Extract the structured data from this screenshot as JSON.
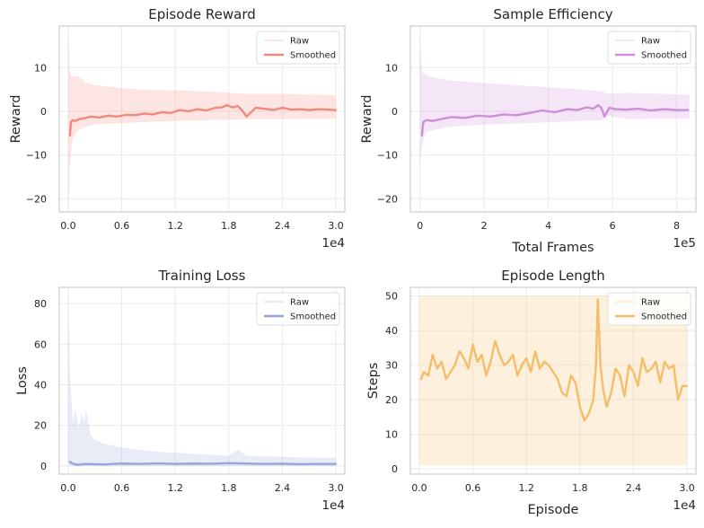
{
  "chart_data": [
    {
      "type": "line",
      "title": "Episode Reward",
      "xlabel": "",
      "ylabel": "Reward",
      "xlim": [
        -0.1,
        3.1
      ],
      "ylim": [
        -23,
        19.5
      ],
      "xticks": [
        0.0,
        0.6,
        1.2,
        1.8,
        2.4,
        3.0
      ],
      "xtick_labels": [
        "0.0",
        "0.6",
        "1.2",
        "1.8",
        "2.4",
        "3.0"
      ],
      "yticks": [
        -20,
        -10,
        0,
        10
      ],
      "ytick_labels": [
        "−20",
        "−10",
        "0",
        "10"
      ],
      "x_offset_label": "1e4",
      "color": "#f08a7e",
      "legend": {
        "position": "top-right",
        "entries": [
          "Raw",
          "Smoothed"
        ]
      },
      "series": [
        {
          "name": "Raw",
          "band_x": [
            0.0,
            0.02,
            0.05,
            0.1,
            0.15,
            0.2,
            0.3,
            0.5,
            0.8,
            1.2,
            1.6,
            2.0,
            2.4,
            2.8,
            3.0
          ],
          "band_low": [
            -23,
            -12,
            -6,
            -4.5,
            -4,
            -3.5,
            -3,
            -2.8,
            -2.5,
            -2.2,
            -2,
            -1.8,
            -1.8,
            -1.7,
            -1.7
          ],
          "band_high": [
            18,
            8.5,
            8,
            8,
            7.5,
            6.5,
            6,
            5.5,
            5,
            4.8,
            4.5,
            4,
            4,
            3.8,
            3.7
          ]
        },
        {
          "name": "Smoothed",
          "x": [
            0.02,
            0.03,
            0.05,
            0.08,
            0.12,
            0.18,
            0.25,
            0.35,
            0.45,
            0.55,
            0.65,
            0.75,
            0.85,
            0.95,
            1.05,
            1.15,
            1.25,
            1.35,
            1.45,
            1.55,
            1.65,
            1.72,
            1.78,
            1.84,
            1.9,
            1.95,
            2.0,
            2.1,
            2.2,
            2.3,
            2.4,
            2.5,
            2.6,
            2.7,
            2.8,
            2.9,
            3.0
          ],
          "y": [
            -5.5,
            -2.5,
            -2.0,
            -2.2,
            -1.8,
            -1.6,
            -1.2,
            -1.4,
            -1.0,
            -1.2,
            -0.8,
            -0.9,
            -0.5,
            -0.7,
            -0.2,
            -0.4,
            0.3,
            0.0,
            0.5,
            0.2,
            0.8,
            0.9,
            1.4,
            0.9,
            1.2,
            0.2,
            -1.2,
            0.8,
            0.6,
            0.3,
            0.8,
            0.4,
            0.5,
            0.3,
            0.5,
            0.4,
            0.3
          ]
        }
      ]
    },
    {
      "type": "line",
      "title": "Sample Efficiency",
      "xlabel": "Total Frames",
      "ylabel": "Reward",
      "xlim": [
        -0.3,
        8.6
      ],
      "ylim": [
        -23,
        19.5
      ],
      "xticks": [
        0,
        2,
        4,
        6,
        8
      ],
      "xtick_labels": [
        "0",
        "2",
        "4",
        "6",
        "8"
      ],
      "yticks": [
        -20,
        -10,
        0,
        10
      ],
      "ytick_labels": [
        "−20",
        "−10",
        "0",
        "10"
      ],
      "x_offset_label": "1e5",
      "color": "#cc8fd8",
      "legend": {
        "position": "top-right",
        "entries": [
          "Raw",
          "Smoothed"
        ]
      },
      "series": [
        {
          "name": "Raw",
          "band_x": [
            0.0,
            0.06,
            0.15,
            0.3,
            0.6,
            1.0,
            2.0,
            3.0,
            4.0,
            5.0,
            5.7,
            5.8,
            6.5,
            7.5,
            8.4
          ],
          "band_low": [
            -12,
            -8,
            -5,
            -4.5,
            -4,
            -3.5,
            -3,
            -2.8,
            -2.5,
            -2.2,
            -2.0,
            -1.0,
            -1.8,
            -1.7,
            -1.7
          ],
          "band_high": [
            18,
            9,
            8.5,
            8,
            7.5,
            7,
            6.5,
            6,
            5.5,
            5,
            4.6,
            4.1,
            4.2,
            4.0,
            3.8
          ]
        },
        {
          "name": "Smoothed",
          "x": [
            0.06,
            0.1,
            0.2,
            0.4,
            0.7,
            1.0,
            1.4,
            1.8,
            2.2,
            2.6,
            3.0,
            3.4,
            3.8,
            4.2,
            4.6,
            4.9,
            5.2,
            5.4,
            5.55,
            5.65,
            5.75,
            5.9,
            6.1,
            6.4,
            6.8,
            7.2,
            7.6,
            8.0,
            8.35
          ],
          "y": [
            -5.5,
            -2.5,
            -2.0,
            -2.2,
            -1.7,
            -1.3,
            -1.5,
            -1.0,
            -1.2,
            -0.7,
            -0.9,
            -0.4,
            0.2,
            -0.2,
            0.5,
            0.3,
            0.9,
            0.6,
            1.4,
            0.8,
            -1.2,
            0.8,
            0.5,
            0.4,
            0.6,
            0.2,
            0.5,
            0.3,
            0.3
          ]
        }
      ]
    },
    {
      "type": "line",
      "title": "Training Loss",
      "xlabel": "",
      "ylabel": "Loss",
      "xlim": [
        -0.1,
        3.1
      ],
      "ylim": [
        -4,
        88
      ],
      "xticks": [
        0.0,
        0.6,
        1.2,
        1.8,
        2.4,
        3.0
      ],
      "xtick_labels": [
        "0.0",
        "0.6",
        "1.2",
        "1.8",
        "2.4",
        "3.0"
      ],
      "yticks": [
        0,
        20,
        40,
        60,
        80
      ],
      "ytick_labels": [
        "0",
        "20",
        "40",
        "60",
        "80"
      ],
      "x_offset_label": "1e4",
      "color": "#9aa4d8",
      "legend": {
        "position": "top-right",
        "entries": [
          "Raw",
          "Smoothed"
        ]
      },
      "series": [
        {
          "name": "Raw",
          "band_x": [
            0.0,
            0.02,
            0.05,
            0.08,
            0.12,
            0.15,
            0.18,
            0.2,
            0.25,
            0.3,
            0.4,
            0.6,
            0.8,
            1.0,
            1.4,
            1.8,
            1.9,
            2.0,
            2.4,
            2.8,
            3.0
          ],
          "band_low": [
            0,
            0,
            0,
            0,
            0,
            0,
            0,
            0,
            0,
            0,
            0,
            0,
            0,
            0,
            0,
            0,
            0,
            0,
            0,
            0,
            0
          ],
          "band_high": [
            85,
            45,
            22,
            28,
            18,
            26,
            22,
            28,
            15,
            13,
            11,
            9,
            8,
            7,
            6,
            5,
            8,
            5,
            4.5,
            4,
            4
          ]
        },
        {
          "name": "Smoothed",
          "x": [
            0.02,
            0.05,
            0.1,
            0.2,
            0.4,
            0.6,
            0.8,
            1.0,
            1.2,
            1.4,
            1.6,
            1.8,
            2.0,
            2.2,
            2.4,
            2.6,
            2.8,
            3.0
          ],
          "y": [
            2.0,
            1.2,
            0.6,
            1.0,
            0.8,
            1.2,
            1.0,
            1.3,
            1.0,
            1.2,
            1.1,
            1.4,
            1.2,
            1.0,
            1.1,
            0.9,
            1.0,
            1.0
          ]
        }
      ]
    },
    {
      "type": "line",
      "title": "Episode Length",
      "xlabel": "Episode",
      "ylabel": "Steps",
      "xlim": [
        -0.1,
        3.1
      ],
      "ylim": [
        -1.5,
        52.5
      ],
      "xticks": [
        0.0,
        0.6,
        1.2,
        1.8,
        2.4,
        3.0
      ],
      "xtick_labels": [
        "0.0",
        "0.6",
        "1.2",
        "1.8",
        "2.4",
        "3.0"
      ],
      "yticks": [
        0,
        10,
        20,
        30,
        40,
        50
      ],
      "ytick_labels": [
        "0",
        "10",
        "20",
        "30",
        "40",
        "50"
      ],
      "x_offset_label": "1e4",
      "color": "#f5bd6b",
      "legend": {
        "position": "top-right",
        "entries": [
          "Raw",
          "Smoothed"
        ]
      },
      "series": [
        {
          "name": "Raw",
          "band_x": [
            0.0,
            3.0
          ],
          "band_low": [
            1,
            1
          ],
          "band_high": [
            50,
            50
          ]
        },
        {
          "name": "Smoothed",
          "x": [
            0.02,
            0.05,
            0.1,
            0.15,
            0.2,
            0.25,
            0.3,
            0.35,
            0.4,
            0.45,
            0.5,
            0.55,
            0.6,
            0.65,
            0.7,
            0.75,
            0.8,
            0.85,
            0.9,
            0.95,
            1.0,
            1.05,
            1.1,
            1.15,
            1.2,
            1.25,
            1.3,
            1.35,
            1.4,
            1.45,
            1.5,
            1.55,
            1.6,
            1.65,
            1.7,
            1.75,
            1.8,
            1.85,
            1.9,
            1.95,
            1.98,
            2.0,
            2.03,
            2.06,
            2.1,
            2.15,
            2.2,
            2.25,
            2.3,
            2.35,
            2.4,
            2.45,
            2.5,
            2.55,
            2.6,
            2.65,
            2.7,
            2.75,
            2.8,
            2.85,
            2.9,
            2.95,
            3.0
          ],
          "y": [
            26,
            28,
            27,
            33,
            29,
            31,
            26,
            28,
            30,
            34,
            32,
            29,
            36,
            31,
            33,
            27,
            31,
            37,
            33,
            30,
            31,
            33,
            27,
            30,
            32,
            28,
            34,
            29,
            31,
            30,
            28,
            26,
            22,
            21,
            27,
            25,
            18,
            14,
            16,
            20,
            30,
            49,
            30,
            23,
            18,
            22,
            29,
            27,
            21,
            30,
            28,
            24,
            32,
            28,
            29,
            31,
            25,
            31,
            29,
            30,
            20,
            24,
            24
          ]
        }
      ]
    }
  ]
}
